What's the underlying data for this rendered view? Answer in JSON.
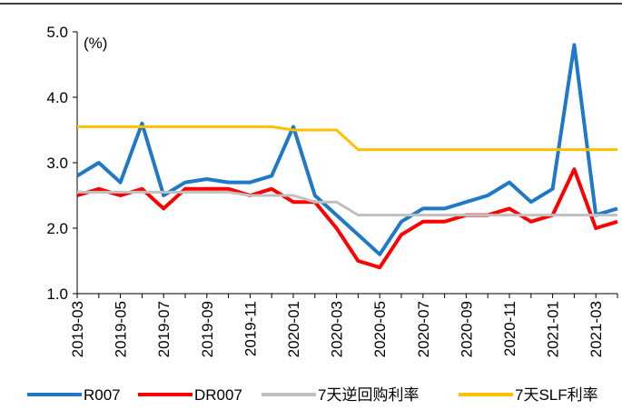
{
  "chart_data": {
    "type": "line",
    "unit_label": "(%)",
    "x": [
      "2019-03",
      "2019-04",
      "2019-05",
      "2019-06",
      "2019-07",
      "2019-08",
      "2019-09",
      "2019-10",
      "2019-11",
      "2019-12",
      "2020-01",
      "2020-02",
      "2020-03",
      "2020-04",
      "2020-05",
      "2020-06",
      "2020-07",
      "2020-08",
      "2020-09",
      "2020-10",
      "2020-11",
      "2020-12",
      "2021-01",
      "2021-02",
      "2021-03",
      "2021-04"
    ],
    "series": [
      {
        "name": "R007",
        "color": "#1f78c8",
        "values": [
          2.8,
          3.0,
          2.7,
          3.6,
          2.5,
          2.7,
          2.75,
          2.7,
          2.7,
          2.8,
          3.55,
          2.5,
          2.2,
          1.9,
          1.6,
          2.1,
          2.3,
          2.3,
          2.4,
          2.5,
          2.7,
          2.4,
          2.6,
          4.8,
          2.2,
          2.3
        ]
      },
      {
        "name": "DR007",
        "color": "#ff0000",
        "values": [
          2.5,
          2.6,
          2.5,
          2.6,
          2.3,
          2.6,
          2.6,
          2.6,
          2.5,
          2.6,
          2.4,
          2.4,
          2.0,
          1.5,
          1.4,
          1.9,
          2.1,
          2.1,
          2.2,
          2.2,
          2.3,
          2.1,
          2.2,
          2.9,
          2.0,
          2.1
        ]
      },
      {
        "name": "7天逆回购利率",
        "color": "#c0c0c0",
        "values": [
          2.55,
          2.55,
          2.55,
          2.55,
          2.55,
          2.55,
          2.55,
          2.55,
          2.5,
          2.5,
          2.5,
          2.4,
          2.4,
          2.2,
          2.2,
          2.2,
          2.2,
          2.2,
          2.2,
          2.2,
          2.2,
          2.2,
          2.2,
          2.2,
          2.2,
          2.2
        ]
      },
      {
        "name": "7天SLF利率",
        "color": "#ffc000",
        "values": [
          3.55,
          3.55,
          3.55,
          3.55,
          3.55,
          3.55,
          3.55,
          3.55,
          3.55,
          3.55,
          3.5,
          3.5,
          3.5,
          3.2,
          3.2,
          3.2,
          3.2,
          3.2,
          3.2,
          3.2,
          3.2,
          3.2,
          3.2,
          3.2,
          3.2,
          3.2
        ]
      }
    ],
    "ylim": [
      1,
      5
    ],
    "yticks": [
      {
        "value": 1,
        "label": "1.0"
      },
      {
        "value": 2,
        "label": "2.0"
      },
      {
        "value": 3,
        "label": "3.0"
      },
      {
        "value": 4,
        "label": "4.0"
      },
      {
        "value": 5,
        "label": "5.0"
      }
    ],
    "legend": "bottom"
  }
}
